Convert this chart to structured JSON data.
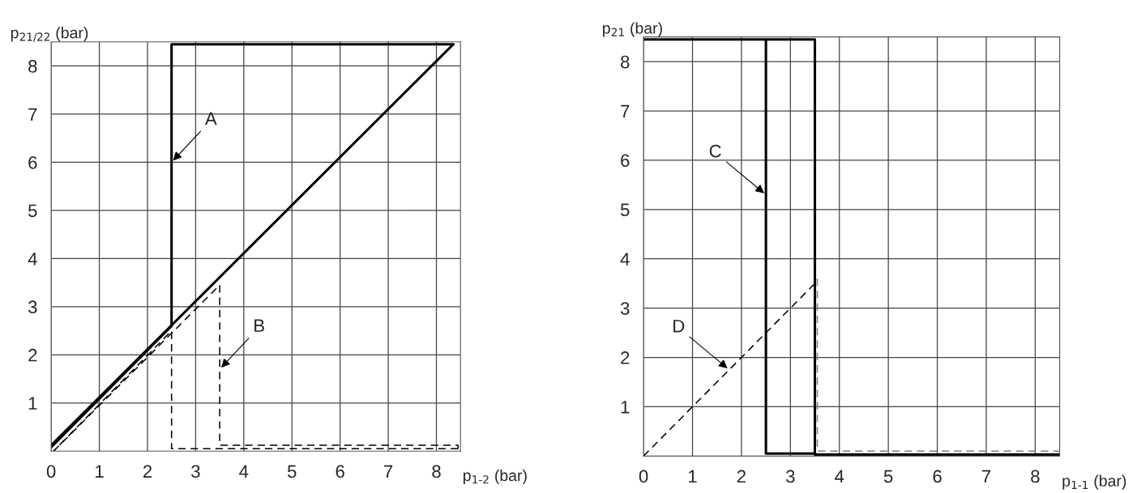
{
  "chart_data": [
    {
      "type": "line",
      "xlabel": "p$_{1-2}$ (bar)",
      "ylabel": "p$_{21/22}$ (bar)",
      "xlim": [
        0,
        8.5
      ],
      "ylim": [
        0,
        8.5
      ],
      "xticks": [
        0,
        1,
        2,
        3,
        4,
        5,
        6,
        7,
        8
      ],
      "yticks": [
        1,
        2,
        3,
        4,
        5,
        6,
        7,
        8
      ],
      "grid": true,
      "marker": "none",
      "series": [
        {
          "color": "#000000",
          "line_style": "solid",
          "x": [
            0,
            8.35
          ],
          "values": [
            0.12,
            8.45
          ]
        },
        {
          "color": "#000000",
          "line_style": "solid",
          "x": [
            8.35,
            2.5,
            2.5,
            0
          ],
          "values": [
            8.45,
            8.45,
            2.6,
            0.08
          ]
        },
        {
          "color": "#000000",
          "line_style": "dashed",
          "x": [
            0.05,
            3.5,
            3.5,
            8.45,
            8.45
          ],
          "values": [
            0,
            3.45,
            0.12,
            0.12,
            0.05
          ]
        },
        {
          "color": "#000000",
          "line_style": "dashed",
          "x": [
            8.45,
            2.5,
            2.5,
            0.05
          ],
          "values": [
            0.05,
            0.05,
            2.5,
            0
          ]
        }
      ],
      "annotations": [
        {
          "text": "A",
          "x": 2.5,
          "y": 6.0
        },
        {
          "text": "B",
          "x": 3.5,
          "y": 1.7
        }
      ]
    },
    {
      "type": "line",
      "xlabel": "p$_{1-1}$ (bar)",
      "ylabel": "p$_{21}$ (bar)",
      "xlim": [
        0,
        8.5
      ],
      "ylim": [
        0,
        8.5
      ],
      "xticks": [
        0,
        1,
        2,
        3,
        4,
        5,
        6,
        7,
        8
      ],
      "yticks": [
        1,
        2,
        3,
        4,
        5,
        6,
        7,
        8
      ],
      "grid": true,
      "marker": "none",
      "series": [
        {
          "color": "#000000",
          "line_style": "solid",
          "x": [
            0,
            3.5,
            3.5,
            2.5,
            2.5
          ],
          "values": [
            8.45,
            8.45,
            0.05,
            0.05,
            8.45
          ]
        },
        {
          "color": "#000000",
          "line_style": "solid",
          "x": [
            3.5,
            8.5
          ],
          "values": [
            0.03,
            0.03
          ]
        },
        {
          "color": "#000000",
          "line_style": "dashed",
          "x": [
            0,
            3.5
          ],
          "values": [
            0,
            3.5
          ]
        },
        {
          "color": "#808080",
          "line_style": "dashed",
          "x": [
            3.55,
            3.55,
            8.5
          ],
          "values": [
            3.6,
            0.1,
            0.1
          ]
        }
      ],
      "annotations": [
        {
          "text": "C",
          "x": 2.5,
          "y": 5.3
        },
        {
          "text": "D",
          "x": 1.75,
          "y": 1.75
        }
      ]
    }
  ]
}
